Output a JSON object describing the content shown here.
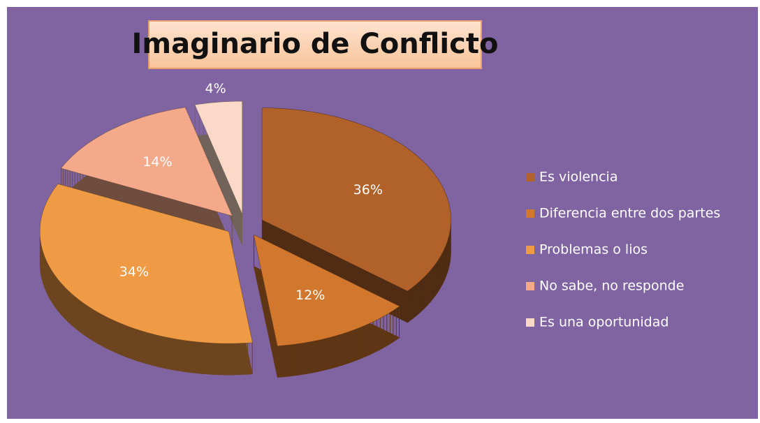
{
  "chart_data": {
    "type": "pie3d",
    "title": "Imaginario de Conflicto",
    "categories": [
      "Es violencia",
      "Diferencia entre dos partes",
      "Problemas o lios",
      "No sabe, no responde",
      "Es una oportunidad"
    ],
    "values": [
      36,
      12,
      34,
      14,
      4
    ],
    "value_labels": [
      "36%",
      "12%",
      "34%",
      "14%",
      "4%"
    ],
    "colors": [
      "#b0622a",
      "#d2782e",
      "#ef9a45",
      "#f4a98a",
      "#fbd9c8"
    ],
    "legend": "right"
  }
}
